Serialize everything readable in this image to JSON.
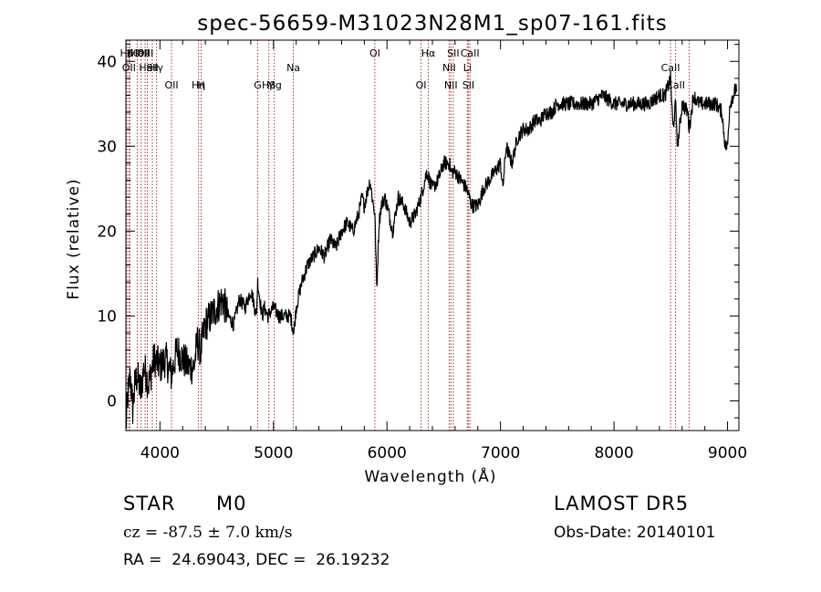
{
  "chart_data": {
    "type": "line",
    "title": "spec-56659-M31023N28M1_sp07-161.fits",
    "xlabel": "Wavelength (Å)",
    "ylabel": "Flux (relative)",
    "xlim": [
      3700,
      9100
    ],
    "ylim": [
      -3.5,
      42.5
    ],
    "xticks": [
      4000,
      5000,
      6000,
      7000,
      8000,
      9000
    ],
    "yticks": [
      0,
      10,
      20,
      30,
      40
    ],
    "grid": false,
    "series": [
      {
        "x": [
          3700,
          3720,
          3740,
          3760,
          3780,
          3800,
          3830,
          3860,
          3900,
          3950,
          4000,
          4050,
          4100,
          4150,
          4200,
          4250,
          4300,
          4330,
          4360,
          4400,
          4450,
          4500,
          4550,
          4600,
          4650,
          4700,
          4750,
          4800,
          4820,
          4850,
          4861,
          4880,
          4900,
          4920,
          4950,
          5000,
          5050,
          5100,
          5150,
          5180,
          5200,
          5250,
          5300,
          5350,
          5400,
          5450,
          5500,
          5550,
          5600,
          5650,
          5700,
          5750,
          5780,
          5800,
          5850,
          5870,
          5893,
          5910,
          5930,
          5950,
          5980,
          6000,
          6050,
          6100,
          6150,
          6200,
          6250,
          6300,
          6350,
          6400,
          6450,
          6500,
          6550,
          6563,
          6600,
          6650,
          6700,
          6750,
          6800,
          6850,
          6900,
          6950,
          7000,
          7020,
          7050,
          7100,
          7150,
          7200,
          7250,
          7300,
          7350,
          7400,
          7450,
          7500,
          7600,
          7700,
          7800,
          7900,
          8000,
          8100,
          8200,
          8300,
          8400,
          8450,
          8498,
          8520,
          8542,
          8560,
          8600,
          8650,
          8662,
          8700,
          8750,
          8800,
          8850,
          8900,
          8950,
          8980,
          9000,
          9020,
          9050,
          9080
        ],
        "y": [
          -3,
          1,
          3,
          -1,
          2,
          3,
          1,
          4,
          2,
          5,
          4,
          5,
          3,
          6,
          5,
          4,
          4,
          7,
          6,
          9,
          10,
          11,
          12,
          10,
          9,
          12,
          11,
          13,
          12,
          10,
          14,
          12,
          10,
          11,
          10,
          11,
          10,
          10,
          10,
          8,
          11,
          14,
          16,
          17,
          18,
          17,
          19,
          18,
          20,
          21,
          20,
          22,
          24,
          23,
          26,
          24,
          22,
          13,
          21,
          23,
          24,
          23,
          20,
          24,
          23,
          21,
          22,
          24,
          27,
          25,
          26,
          28,
          28,
          27,
          27,
          26,
          25,
          23,
          23,
          25,
          26,
          27,
          28,
          25,
          30,
          28,
          31,
          32,
          32,
          33,
          33,
          34,
          34,
          35,
          35,
          35,
          35,
          36,
          35,
          35,
          35,
          35,
          36,
          36,
          38,
          32,
          35,
          30,
          35,
          34,
          32,
          36,
          35,
          35,
          35,
          35,
          34,
          30,
          30,
          35,
          36,
          37
        ],
        "color": "#000000"
      }
    ],
    "emission_lines": [
      {
        "label": "Hβ",
        "x": 3709,
        "row": 1
      },
      {
        "label": "K",
        "x": 3735,
        "row": 1
      },
      {
        "label": "Hδ",
        "x": 3800,
        "row": 1
      },
      {
        "label": "OIII",
        "x": 3835,
        "row": 1
      },
      {
        "label": "OIII",
        "x": 3869,
        "row": 1
      },
      {
        "label": "OII",
        "x": 3727,
        "row": 2
      },
      {
        "label": "HeI",
        "x": 3889,
        "row": 2
      },
      {
        "label": "SII",
        "x": 3933,
        "row": 2
      },
      {
        "label": "Hγ",
        "x": 3970,
        "row": 2
      },
      {
        "label": "OII",
        "x": 4102,
        "row": 3
      },
      {
        "label": "Hη",
        "x": 4340,
        "row": 3
      },
      {
        "label": "H",
        "x": 4363,
        "row": 3
      },
      {
        "label": "G",
        "x": 4861,
        "row": 3
      },
      {
        "label": "Hβ",
        "x": 4959,
        "row": 3
      },
      {
        "label": "Mg",
        "x": 5007,
        "row": 3
      },
      {
        "label": "Na",
        "x": 5175,
        "row": 2
      },
      {
        "label": "OI",
        "x": 5893,
        "row": 1
      },
      {
        "label": "OI",
        "x": 6300,
        "row": 3
      },
      {
        "label": "Hα",
        "x": 6364,
        "row": 1
      },
      {
        "label": "NII",
        "x": 6548,
        "row": 2
      },
      {
        "label": "NII",
        "x": 6563,
        "row": 3
      },
      {
        "label": "SII",
        "x": 6584,
        "row": 1
      },
      {
        "label": "Li",
        "x": 6708,
        "row": 2
      },
      {
        "label": "SII",
        "x": 6717,
        "row": 3
      },
      {
        "label": "CaII",
        "x": 6731,
        "row": 1
      },
      {
        "label": "CaII",
        "x": 8498,
        "row": 2
      },
      {
        "label": "CaII",
        "x": 8542,
        "row": 3
      },
      {
        "label": "",
        "x": 8662,
        "row": 0
      }
    ]
  },
  "info": {
    "object_class": "STAR",
    "subclass": "M0",
    "survey": "LAMOST DR5",
    "redshift": "cz = -87.5 ± 7.0 km/s",
    "obs_date": "Obs-Date: 20140101",
    "coords": "RA =  24.69043, DEC =  26.19232"
  }
}
